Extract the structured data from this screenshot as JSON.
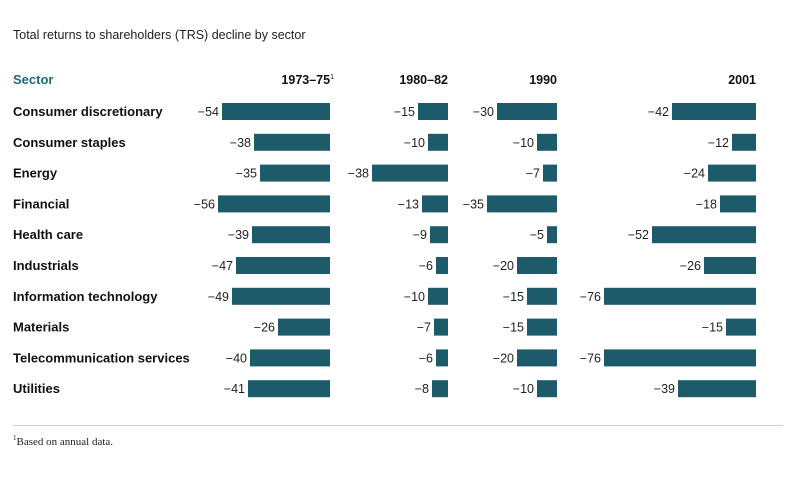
{
  "title": "Total returns to shareholders (TRS) decline by sector",
  "footnote": {
    "marker": "1",
    "text": "Based on annual data."
  },
  "colors": {
    "bar": "#1d5b6b",
    "header_accent": "#1b6a7a",
    "rule": "#cfcfcf"
  },
  "chart_data": {
    "type": "bar",
    "orientation": "horizontal",
    "row_header": "Sector",
    "categories": [
      "Consumer discretionary",
      "Consumer staples",
      "Energy",
      "Financial",
      "Health care",
      "Industrials",
      "Information technology",
      "Materials",
      "Telecommunication services",
      "Utilities"
    ],
    "series": [
      {
        "name": "1973–75",
        "footnote_marker": "1",
        "values": [
          -54,
          -38,
          -35,
          -56,
          -39,
          -47,
          -49,
          -26,
          -40,
          -41
        ]
      },
      {
        "name": "1980–82",
        "footnote_marker": "",
        "values": [
          -15,
          -10,
          -38,
          -13,
          -9,
          -6,
          -10,
          -7,
          -6,
          -8
        ]
      },
      {
        "name": "1990",
        "footnote_marker": "",
        "values": [
          -30,
          -10,
          -7,
          -35,
          -5,
          -20,
          -15,
          -15,
          -20,
          -10
        ]
      },
      {
        "name": "2001",
        "footnote_marker": "",
        "values": [
          -42,
          -12,
          -24,
          -18,
          -52,
          -26,
          -76,
          -15,
          -76,
          -39
        ]
      }
    ],
    "value_labels": true,
    "grid": false,
    "legend": "none"
  }
}
